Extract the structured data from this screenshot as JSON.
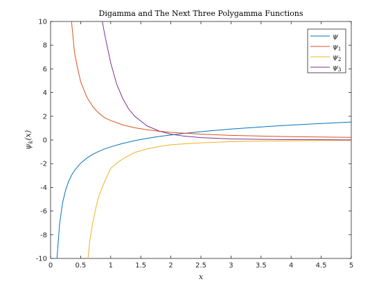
{
  "chart_data": {
    "type": "line",
    "title": "Digamma and The Next Three Polygamma Functions",
    "xlabel": "x",
    "ylabel": "ψ_k(x)",
    "ylabel_main": "ψ",
    "ylabel_sub": "k",
    "ylabel_rest": "(x)",
    "xlim": [
      0,
      5
    ],
    "ylim": [
      -10,
      10
    ],
    "xticks": [
      "0",
      "0.5",
      "1",
      "1.5",
      "2",
      "2.5",
      "3",
      "3.5",
      "4",
      "4.5",
      "5"
    ],
    "yticks": [
      "-10",
      "-8",
      "-6",
      "-4",
      "-2",
      "0",
      "2",
      "4",
      "6",
      "8",
      "10"
    ],
    "grid": false,
    "legend_position": "top-right",
    "series": [
      {
        "name": "ψ",
        "color": "#0072bd",
        "x": [
          0.1,
          0.15,
          0.2,
          0.25,
          0.3,
          0.35,
          0.4,
          0.5,
          0.6,
          0.7,
          0.8,
          0.9,
          1.0,
          1.2,
          1.4,
          1.6,
          1.8,
          2.0,
          2.2,
          2.5,
          3.0,
          3.5,
          4.0,
          4.5,
          5.0
        ],
        "y": [
          -10.42,
          -7.08,
          -5.29,
          -4.23,
          -3.5,
          -2.97,
          -2.56,
          -1.96,
          -1.54,
          -1.22,
          -0.97,
          -0.75,
          -0.58,
          -0.29,
          -0.06,
          0.13,
          0.29,
          0.42,
          0.54,
          0.7,
          0.92,
          1.1,
          1.26,
          1.39,
          1.51
        ]
      },
      {
        "name": "ψ",
        "subscript": "1",
        "color": "#d95319",
        "x": [
          0.3,
          0.35,
          0.4,
          0.45,
          0.5,
          0.6,
          0.7,
          0.8,
          0.9,
          1.0,
          1.2,
          1.4,
          1.6,
          1.8,
          2.0,
          2.5,
          3.0,
          3.5,
          4.0,
          4.5,
          5.0
        ],
        "y": [
          12.25,
          9.91,
          7.28,
          6.04,
          4.93,
          3.64,
          2.83,
          2.27,
          1.87,
          1.64,
          1.27,
          1.03,
          0.86,
          0.74,
          0.64,
          0.49,
          0.39,
          0.33,
          0.28,
          0.25,
          0.22
        ]
      },
      {
        "name": "ψ",
        "subscript": "2",
        "color": "#edb120",
        "x": [
          0.6,
          0.65,
          0.7,
          0.75,
          0.8,
          0.9,
          1.0,
          1.1,
          1.2,
          1.4,
          1.6,
          1.8,
          2.0,
          2.5,
          3.0,
          3.5,
          4.0,
          4.5,
          5.0
        ],
        "y": [
          -11.2,
          -8.6,
          -7.0,
          -5.8,
          -4.77,
          -3.5,
          -2.4,
          -1.95,
          -1.6,
          -1.05,
          -0.76,
          -0.56,
          -0.4,
          -0.24,
          -0.15,
          -0.1,
          -0.07,
          -0.05,
          -0.04
        ]
      },
      {
        "name": "ψ",
        "subscript": "3",
        "color": "#7e2f8e",
        "x": [
          0.85,
          0.9,
          1.0,
          1.1,
          1.2,
          1.3,
          1.4,
          1.6,
          1.8,
          2.0,
          2.2,
          2.5,
          3.0,
          3.5,
          4.0,
          4.5,
          5.0
        ],
        "y": [
          10.3,
          8.9,
          6.5,
          4.7,
          3.5,
          2.6,
          2.0,
          1.2,
          0.76,
          0.49,
          0.34,
          0.2,
          0.09,
          0.05,
          0.03,
          0.02,
          0.01
        ]
      }
    ]
  }
}
